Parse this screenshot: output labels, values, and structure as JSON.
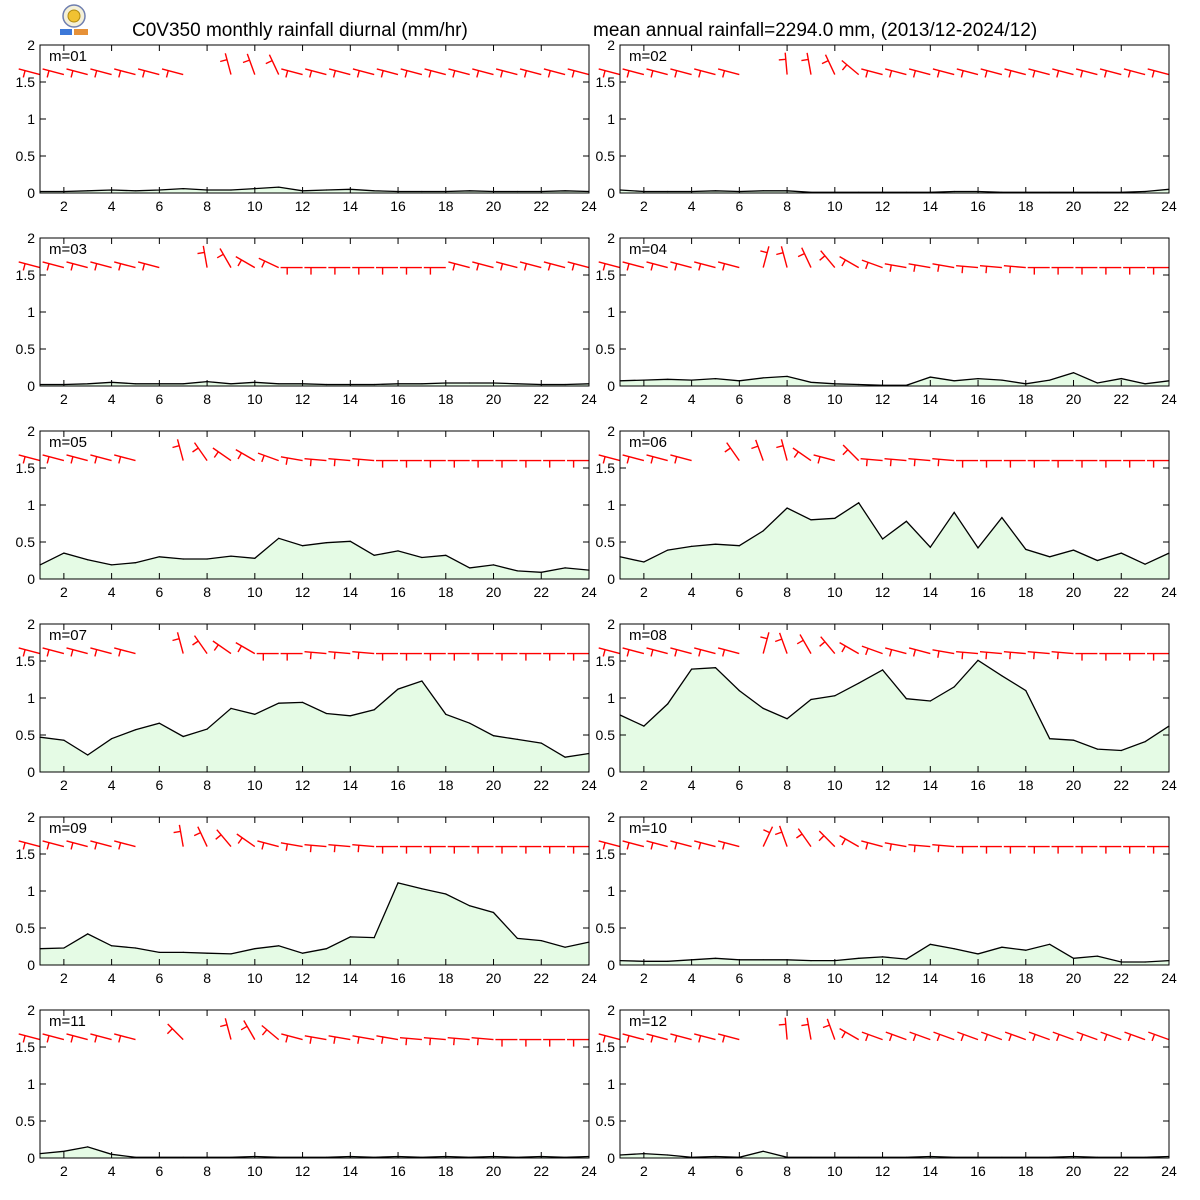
{
  "header": {
    "title_left": "C0V350 monthly rainfall diurnal (mm/hr)",
    "title_right": "mean annual rainfall=2294.0 mm, (2013/12-2024/12)"
  },
  "colors": {
    "rain_line": "#000000",
    "rain_fill": "#e5fbe5",
    "wind_barb": "#ff0000",
    "axis": "#000000"
  },
  "chart_data": [
    {
      "type": "area",
      "label": "m=01",
      "x": [
        1,
        2,
        3,
        4,
        5,
        6,
        7,
        8,
        9,
        10,
        11,
        12,
        13,
        14,
        15,
        16,
        17,
        18,
        19,
        20,
        21,
        22,
        23,
        24
      ],
      "values": [
        0.02,
        0.02,
        0.03,
        0.04,
        0.03,
        0.04,
        0.06,
        0.04,
        0.04,
        0.06,
        0.08,
        0.03,
        0.04,
        0.05,
        0.03,
        0.02,
        0.02,
        0.02,
        0.03,
        0.02,
        0.02,
        0.02,
        0.03,
        0.02
      ],
      "ylim": [
        0,
        2
      ],
      "yticks": [
        0,
        0.5,
        1,
        1.5,
        2
      ],
      "xticks": [
        2,
        4,
        6,
        8,
        10,
        12,
        14,
        16,
        18,
        20,
        22,
        24
      ],
      "wind_angles": [
        75,
        75,
        75,
        75,
        75,
        75,
        75,
        null,
        15,
        20,
        25,
        75,
        75,
        75,
        75,
        75,
        75,
        75,
        75,
        75,
        75,
        75,
        75,
        75
      ]
    },
    {
      "type": "area",
      "label": "m=02",
      "x": [
        1,
        2,
        3,
        4,
        5,
        6,
        7,
        8,
        9,
        10,
        11,
        12,
        13,
        14,
        15,
        16,
        17,
        18,
        19,
        20,
        21,
        22,
        23,
        24
      ],
      "values": [
        0.04,
        0.02,
        0.02,
        0.02,
        0.03,
        0.02,
        0.03,
        0.03,
        0.01,
        0.01,
        0.01,
        0.01,
        0.01,
        0.01,
        0.02,
        0.02,
        0.01,
        0.01,
        0.01,
        0.01,
        0.01,
        0.01,
        0.02,
        0.05
      ],
      "ylim": [
        0,
        2
      ],
      "yticks": [
        0,
        0.5,
        1,
        1.5,
        2
      ],
      "xticks": [
        2,
        4,
        6,
        8,
        10,
        12,
        14,
        16,
        18,
        20,
        22,
        24
      ],
      "wind_angles": [
        75,
        75,
        75,
        75,
        75,
        75,
        null,
        5,
        10,
        25,
        50,
        75,
        75,
        75,
        75,
        75,
        75,
        75,
        75,
        75,
        75,
        75,
        75,
        75
      ]
    },
    {
      "type": "area",
      "label": "m=03",
      "x": [
        1,
        2,
        3,
        4,
        5,
        6,
        7,
        8,
        9,
        10,
        11,
        12,
        13,
        14,
        15,
        16,
        17,
        18,
        19,
        20,
        21,
        22,
        23,
        24
      ],
      "values": [
        0.02,
        0.02,
        0.03,
        0.05,
        0.03,
        0.03,
        0.03,
        0.06,
        0.03,
        0.05,
        0.03,
        0.03,
        0.02,
        0.02,
        0.02,
        0.03,
        0.03,
        0.04,
        0.04,
        0.04,
        0.03,
        0.02,
        0.02,
        0.03
      ],
      "ylim": [
        0,
        2
      ],
      "yticks": [
        0,
        0.5,
        1,
        1.5,
        2
      ],
      "xticks": [
        2,
        4,
        6,
        8,
        10,
        12,
        14,
        16,
        18,
        20,
        22,
        24
      ],
      "wind_angles": [
        75,
        75,
        75,
        75,
        75,
        75,
        null,
        10,
        30,
        60,
        65,
        90,
        90,
        90,
        90,
        90,
        90,
        90,
        75,
        75,
        75,
        75,
        75,
        75
      ]
    },
    {
      "type": "area",
      "label": "m=04",
      "x": [
        1,
        2,
        3,
        4,
        5,
        6,
        7,
        8,
        9,
        10,
        11,
        12,
        13,
        14,
        15,
        16,
        17,
        18,
        19,
        20,
        21,
        22,
        23,
        24
      ],
      "values": [
        0.07,
        0.08,
        0.09,
        0.08,
        0.1,
        0.07,
        0.11,
        0.13,
        0.05,
        0.03,
        0.02,
        0.01,
        0.01,
        0.12,
        0.07,
        0.1,
        0.08,
        0.03,
        0.08,
        0.18,
        0.04,
        0.1,
        0.03,
        0.07
      ],
      "ylim": [
        0,
        2
      ],
      "yticks": [
        0,
        0.5,
        1,
        1.5,
        2
      ],
      "xticks": [
        2,
        4,
        6,
        8,
        10,
        12,
        14,
        16,
        18,
        20,
        22,
        24
      ],
      "wind_angles": [
        75,
        75,
        75,
        75,
        75,
        75,
        -15,
        15,
        25,
        40,
        60,
        70,
        80,
        80,
        80,
        85,
        85,
        85,
        90,
        90,
        90,
        90,
        90,
        90
      ]
    },
    {
      "type": "area",
      "label": "m=05",
      "x": [
        1,
        2,
        3,
        4,
        5,
        6,
        7,
        8,
        9,
        10,
        11,
        12,
        13,
        14,
        15,
        16,
        17,
        18,
        19,
        20,
        21,
        22,
        23,
        24
      ],
      "values": [
        0.19,
        0.35,
        0.26,
        0.19,
        0.22,
        0.3,
        0.27,
        0.27,
        0.31,
        0.28,
        0.55,
        0.45,
        0.49,
        0.51,
        0.32,
        0.38,
        0.29,
        0.32,
        0.15,
        0.19,
        0.11,
        0.09,
        0.15,
        0.12
      ],
      "ylim": [
        0,
        2
      ],
      "yticks": [
        0,
        0.5,
        1,
        1.5,
        2
      ],
      "xticks": [
        2,
        4,
        6,
        8,
        10,
        12,
        14,
        16,
        18,
        20,
        22,
        24
      ],
      "wind_angles": [
        75,
        75,
        75,
        75,
        75,
        null,
        15,
        35,
        55,
        60,
        70,
        80,
        85,
        85,
        85,
        90,
        90,
        90,
        90,
        90,
        90,
        90,
        90,
        90
      ]
    },
    {
      "type": "area",
      "label": "m=06",
      "x": [
        1,
        2,
        3,
        4,
        5,
        6,
        7,
        8,
        9,
        10,
        11,
        12,
        13,
        14,
        15,
        16,
        17,
        18,
        19,
        20,
        21,
        22,
        23,
        24
      ],
      "values": [
        0.3,
        0.23,
        0.39,
        0.44,
        0.47,
        0.45,
        0.65,
        0.96,
        0.8,
        0.82,
        1.03,
        0.54,
        0.78,
        0.43,
        0.9,
        0.42,
        0.83,
        0.4,
        0.3,
        0.39,
        0.25,
        0.35,
        0.2,
        0.35
      ],
      "ylim": [
        0,
        2
      ],
      "yticks": [
        0,
        0.5,
        1,
        1.5,
        2
      ],
      "xticks": [
        2,
        4,
        6,
        8,
        10,
        12,
        14,
        16,
        18,
        20,
        22,
        24
      ],
      "wind_angles": [
        75,
        75,
        75,
        75,
        null,
        35,
        20,
        15,
        55,
        75,
        45,
        85,
        85,
        85,
        85,
        90,
        90,
        90,
        90,
        90,
        90,
        90,
        90,
        90
      ]
    },
    {
      "type": "area",
      "label": "m=07",
      "x": [
        1,
        2,
        3,
        4,
        5,
        6,
        7,
        8,
        9,
        10,
        11,
        12,
        13,
        14,
        15,
        16,
        17,
        18,
        19,
        20,
        21,
        22,
        23,
        24
      ],
      "values": [
        0.47,
        0.43,
        0.23,
        0.45,
        0.57,
        0.66,
        0.48,
        0.58,
        0.86,
        0.78,
        0.93,
        0.94,
        0.79,
        0.76,
        0.84,
        1.12,
        1.23,
        0.78,
        0.66,
        0.49,
        0.44,
        0.39,
        0.2,
        0.25
      ],
      "ylim": [
        0,
        2
      ],
      "yticks": [
        0,
        0.5,
        1,
        1.5,
        2
      ],
      "xticks": [
        2,
        4,
        6,
        8,
        10,
        12,
        14,
        16,
        18,
        20,
        22,
        24
      ],
      "wind_angles": [
        75,
        75,
        75,
        75,
        75,
        null,
        15,
        35,
        55,
        60,
        90,
        90,
        85,
        85,
        85,
        90,
        90,
        90,
        90,
        90,
        90,
        90,
        90,
        90
      ]
    },
    {
      "type": "area",
      "label": "m=08",
      "x": [
        1,
        2,
        3,
        4,
        5,
        6,
        7,
        8,
        9,
        10,
        11,
        12,
        13,
        14,
        15,
        16,
        17,
        18,
        19,
        20,
        21,
        22,
        23,
        24
      ],
      "values": [
        0.77,
        0.62,
        0.92,
        1.39,
        1.41,
        1.1,
        0.86,
        0.72,
        0.98,
        1.03,
        1.2,
        1.38,
        0.99,
        0.96,
        1.15,
        1.51,
        1.3,
        1.1,
        0.45,
        0.43,
        0.31,
        0.29,
        0.41,
        0.62
      ],
      "ylim": [
        0,
        2
      ],
      "yticks": [
        0,
        0.5,
        1,
        1.5,
        2
      ],
      "xticks": [
        2,
        4,
        6,
        8,
        10,
        12,
        14,
        16,
        18,
        20,
        22,
        24
      ],
      "wind_angles": [
        75,
        75,
        75,
        75,
        75,
        75,
        -15,
        20,
        30,
        40,
        60,
        70,
        75,
        75,
        80,
        85,
        85,
        85,
        85,
        85,
        90,
        90,
        90,
        90
      ]
    },
    {
      "type": "area",
      "label": "m=09",
      "x": [
        1,
        2,
        3,
        4,
        5,
        6,
        7,
        8,
        9,
        10,
        11,
        12,
        13,
        14,
        15,
        16,
        17,
        18,
        19,
        20,
        21,
        22,
        23,
        24
      ],
      "values": [
        0.22,
        0.23,
        0.42,
        0.26,
        0.23,
        0.17,
        0.17,
        0.16,
        0.15,
        0.22,
        0.26,
        0.16,
        0.22,
        0.38,
        0.37,
        1.11,
        1.03,
        0.96,
        0.8,
        0.71,
        0.36,
        0.33,
        0.24,
        0.31
      ],
      "ylim": [
        0,
        2
      ],
      "yticks": [
        0,
        0.5,
        1,
        1.5,
        2
      ],
      "xticks": [
        2,
        4,
        6,
        8,
        10,
        12,
        14,
        16,
        18,
        20,
        22,
        24
      ],
      "wind_angles": [
        75,
        75,
        75,
        75,
        75,
        null,
        10,
        25,
        40,
        55,
        75,
        80,
        85,
        85,
        85,
        90,
        90,
        90,
        90,
        90,
        90,
        90,
        90,
        90
      ]
    },
    {
      "type": "area",
      "label": "m=10",
      "x": [
        1,
        2,
        3,
        4,
        5,
        6,
        7,
        8,
        9,
        10,
        11,
        12,
        13,
        14,
        15,
        16,
        17,
        18,
        19,
        20,
        21,
        22,
        23,
        24
      ],
      "values": [
        0.06,
        0.05,
        0.05,
        0.07,
        0.09,
        0.07,
        0.07,
        0.07,
        0.06,
        0.06,
        0.09,
        0.11,
        0.08,
        0.28,
        0.22,
        0.15,
        0.24,
        0.2,
        0.28,
        0.09,
        0.12,
        0.04,
        0.04,
        0.06
      ],
      "ylim": [
        0,
        2
      ],
      "yticks": [
        0,
        0.5,
        1,
        1.5,
        2
      ],
      "xticks": [
        2,
        4,
        6,
        8,
        10,
        12,
        14,
        16,
        18,
        20,
        22,
        24
      ],
      "wind_angles": [
        75,
        75,
        75,
        75,
        75,
        75,
        -25,
        20,
        35,
        45,
        60,
        75,
        80,
        85,
        85,
        90,
        90,
        90,
        90,
        90,
        90,
        90,
        90,
        90
      ]
    },
    {
      "type": "area",
      "label": "m=11",
      "x": [
        1,
        2,
        3,
        4,
        5,
        6,
        7,
        8,
        9,
        10,
        11,
        12,
        13,
        14,
        15,
        16,
        17,
        18,
        19,
        20,
        21,
        22,
        23,
        24
      ],
      "values": [
        0.06,
        0.09,
        0.15,
        0.05,
        0.01,
        0.01,
        0.01,
        0.01,
        0.01,
        0.02,
        0.01,
        0.01,
        0.01,
        0.02,
        0.01,
        0.02,
        0.01,
        0.02,
        0.01,
        0.02,
        0.01,
        0.02,
        0.01,
        0.02
      ],
      "ylim": [
        0,
        2
      ],
      "yticks": [
        0,
        0.5,
        1,
        1.5,
        2
      ],
      "xticks": [
        2,
        4,
        6,
        8,
        10,
        12,
        14,
        16,
        18,
        20,
        22,
        24
      ],
      "wind_angles": [
        75,
        75,
        75,
        75,
        75,
        null,
        45,
        null,
        15,
        30,
        50,
        75,
        80,
        80,
        80,
        80,
        85,
        85,
        85,
        85,
        90,
        90,
        90,
        90
      ]
    },
    {
      "type": "area",
      "label": "m=12",
      "x": [
        1,
        2,
        3,
        4,
        5,
        6,
        7,
        8,
        9,
        10,
        11,
        12,
        13,
        14,
        15,
        16,
        17,
        18,
        19,
        20,
        21,
        22,
        23,
        24
      ],
      "values": [
        0.04,
        0.06,
        0.04,
        0.01,
        0.02,
        0.01,
        0.09,
        0.01,
        0.01,
        0.01,
        0.01,
        0.01,
        0.01,
        0.02,
        0.01,
        0.01,
        0.01,
        0.01,
        0.01,
        0.02,
        0.01,
        0.01,
        0.01,
        0.02
      ],
      "ylim": [
        0,
        2
      ],
      "yticks": [
        0,
        0.5,
        1,
        1.5,
        2
      ],
      "xticks": [
        2,
        4,
        6,
        8,
        10,
        12,
        14,
        16,
        18,
        20,
        22,
        24
      ],
      "wind_angles": [
        75,
        75,
        75,
        75,
        75,
        75,
        null,
        5,
        10,
        20,
        60,
        70,
        70,
        70,
        70,
        70,
        70,
        70,
        70,
        70,
        70,
        70,
        70,
        70
      ]
    }
  ]
}
